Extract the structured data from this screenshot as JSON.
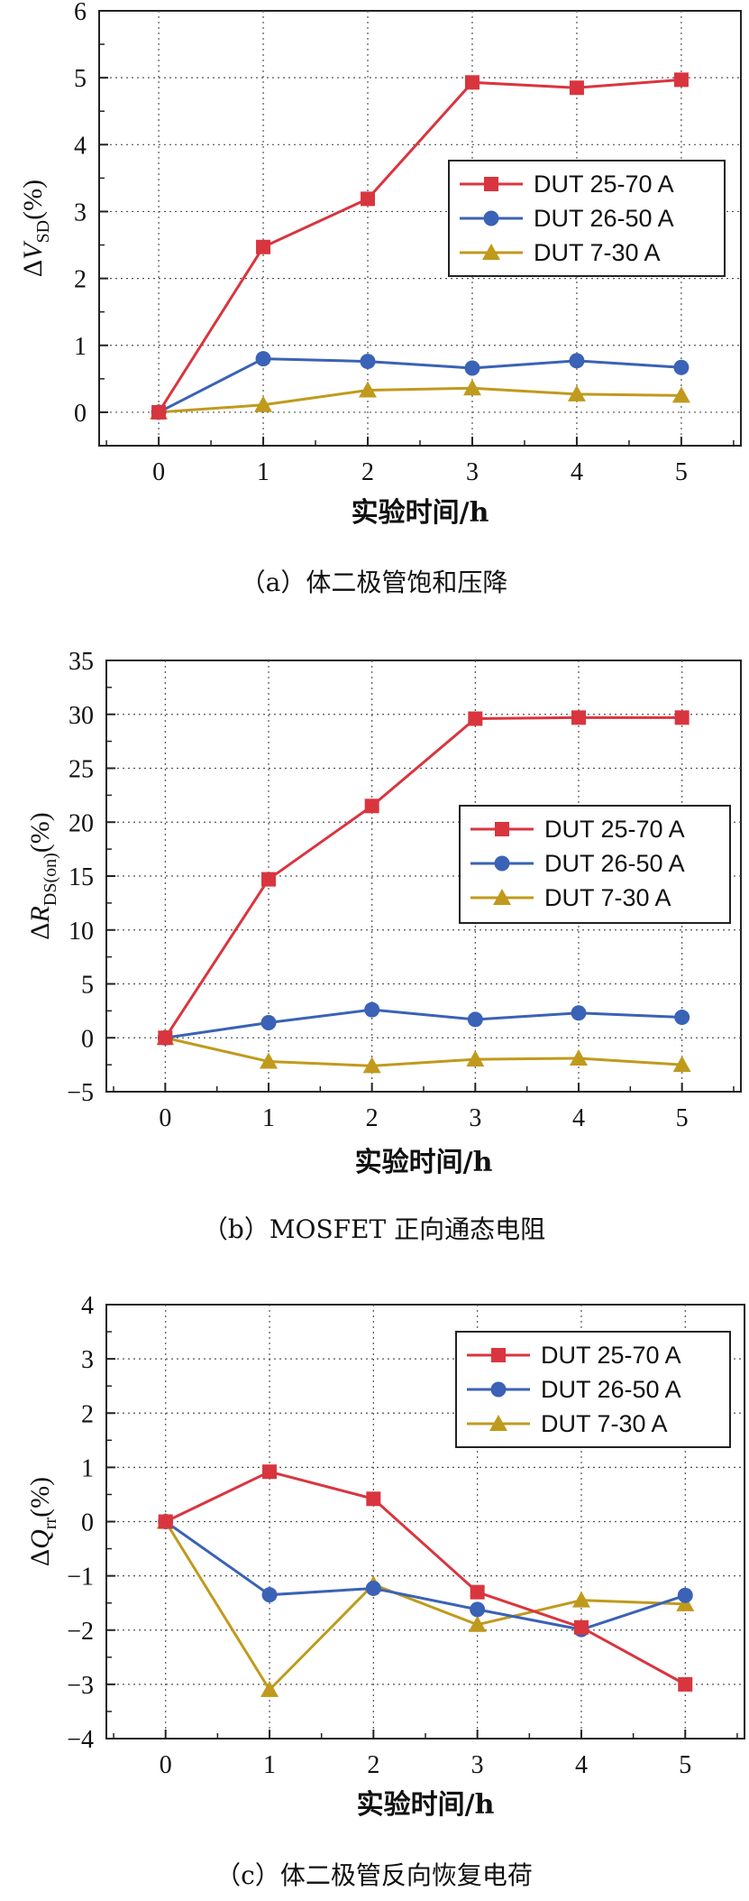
{
  "chart_data": [
    {
      "type": "line",
      "caption": "（a）体二极管饱和压降",
      "xlabel": "实验时间/h",
      "ylabel": {
        "prefix": "Δ",
        "var": "V",
        "sub": "SD",
        "suffix": "(%)"
      },
      "x": [
        0,
        1,
        2,
        3,
        4,
        5
      ],
      "xticks": [
        "0",
        "1",
        "2",
        "3",
        "4",
        "5"
      ],
      "yticks": [
        "0",
        "1",
        "2",
        "3",
        "4",
        "5",
        "6"
      ],
      "ylim": [
        -0.5,
        6
      ],
      "yticks_values": [
        0,
        1,
        2,
        3,
        4,
        5,
        6
      ],
      "grid": true,
      "legend_placement": "right",
      "series": [
        {
          "name": "DUT 25-70 A",
          "marker": "square",
          "color": "#d9353f",
          "values": [
            0,
            2.47,
            3.19,
            4.93,
            4.85,
            4.97
          ]
        },
        {
          "name": "DUT 26-50 A",
          "marker": "circle",
          "color": "#3a62b6",
          "values": [
            0,
            0.8,
            0.76,
            0.66,
            0.77,
            0.67
          ]
        },
        {
          "name": "DUT 7-30 A",
          "marker": "triangle",
          "color": "#c09a1c",
          "values": [
            0,
            0.11,
            0.33,
            0.36,
            0.27,
            0.25
          ]
        }
      ]
    },
    {
      "type": "line",
      "caption": "（b）MOSFET 正向通态电阻",
      "xlabel": "实验时间/h",
      "ylabel": {
        "prefix": "Δ",
        "var": "R",
        "sub": "DS(on)",
        "suffix": "(%)"
      },
      "x": [
        0,
        1,
        2,
        3,
        4,
        5
      ],
      "xticks": [
        "0",
        "1",
        "2",
        "3",
        "4",
        "5"
      ],
      "yticks": [
        "−5",
        "0",
        "5",
        "10",
        "15",
        "20",
        "25",
        "30",
        "35"
      ],
      "ylim": [
        -5,
        35
      ],
      "yticks_values": [
        -5,
        0,
        5,
        10,
        15,
        20,
        25,
        30,
        35
      ],
      "grid": true,
      "legend_placement": "right",
      "series": [
        {
          "name": "DUT 25-70 A",
          "marker": "square",
          "color": "#d9353f",
          "values": [
            0,
            14.7,
            21.5,
            29.6,
            29.7,
            29.7
          ]
        },
        {
          "name": "DUT 26-50 A",
          "marker": "circle",
          "color": "#3a62b6",
          "values": [
            0,
            1.4,
            2.6,
            1.7,
            2.3,
            1.9
          ]
        },
        {
          "name": "DUT 7-30 A",
          "marker": "triangle",
          "color": "#c09a1c",
          "values": [
            0,
            -2.2,
            -2.6,
            -2.0,
            -1.9,
            -2.5
          ]
        }
      ]
    },
    {
      "type": "line",
      "caption": "（c）体二极管反向恢复电荷",
      "xlabel": "实验时间/h",
      "ylabel": {
        "prefix": "Δ",
        "var": "Q",
        "sub": "rr",
        "suffix": "(%)"
      },
      "x": [
        0,
        1,
        2,
        3,
        4,
        5
      ],
      "xticks": [
        "0",
        "1",
        "2",
        "3",
        "4",
        "5"
      ],
      "yticks": [
        "−4",
        "−3",
        "−2",
        "−1",
        "0",
        "1",
        "2",
        "3",
        "4"
      ],
      "ylim": [
        -4,
        4
      ],
      "yticks_values": [
        -4,
        -3,
        -2,
        -1,
        0,
        1,
        2,
        3,
        4
      ],
      "grid": true,
      "legend_placement": "top-right",
      "series": [
        {
          "name": "DUT 25-70 A",
          "marker": "square",
          "color": "#d9353f",
          "values": [
            0,
            0.92,
            0.42,
            -1.3,
            -1.95,
            -3.0
          ]
        },
        {
          "name": "DUT 26-50 A",
          "marker": "circle",
          "color": "#3a62b6",
          "values": [
            0,
            -1.35,
            -1.23,
            -1.62,
            -1.99,
            -1.36
          ]
        },
        {
          "name": "DUT 7-30 A",
          "marker": "triangle",
          "color": "#c09a1c",
          "values": [
            0,
            -3.1,
            -1.16,
            -1.9,
            -1.45,
            -1.52
          ]
        }
      ]
    }
  ]
}
